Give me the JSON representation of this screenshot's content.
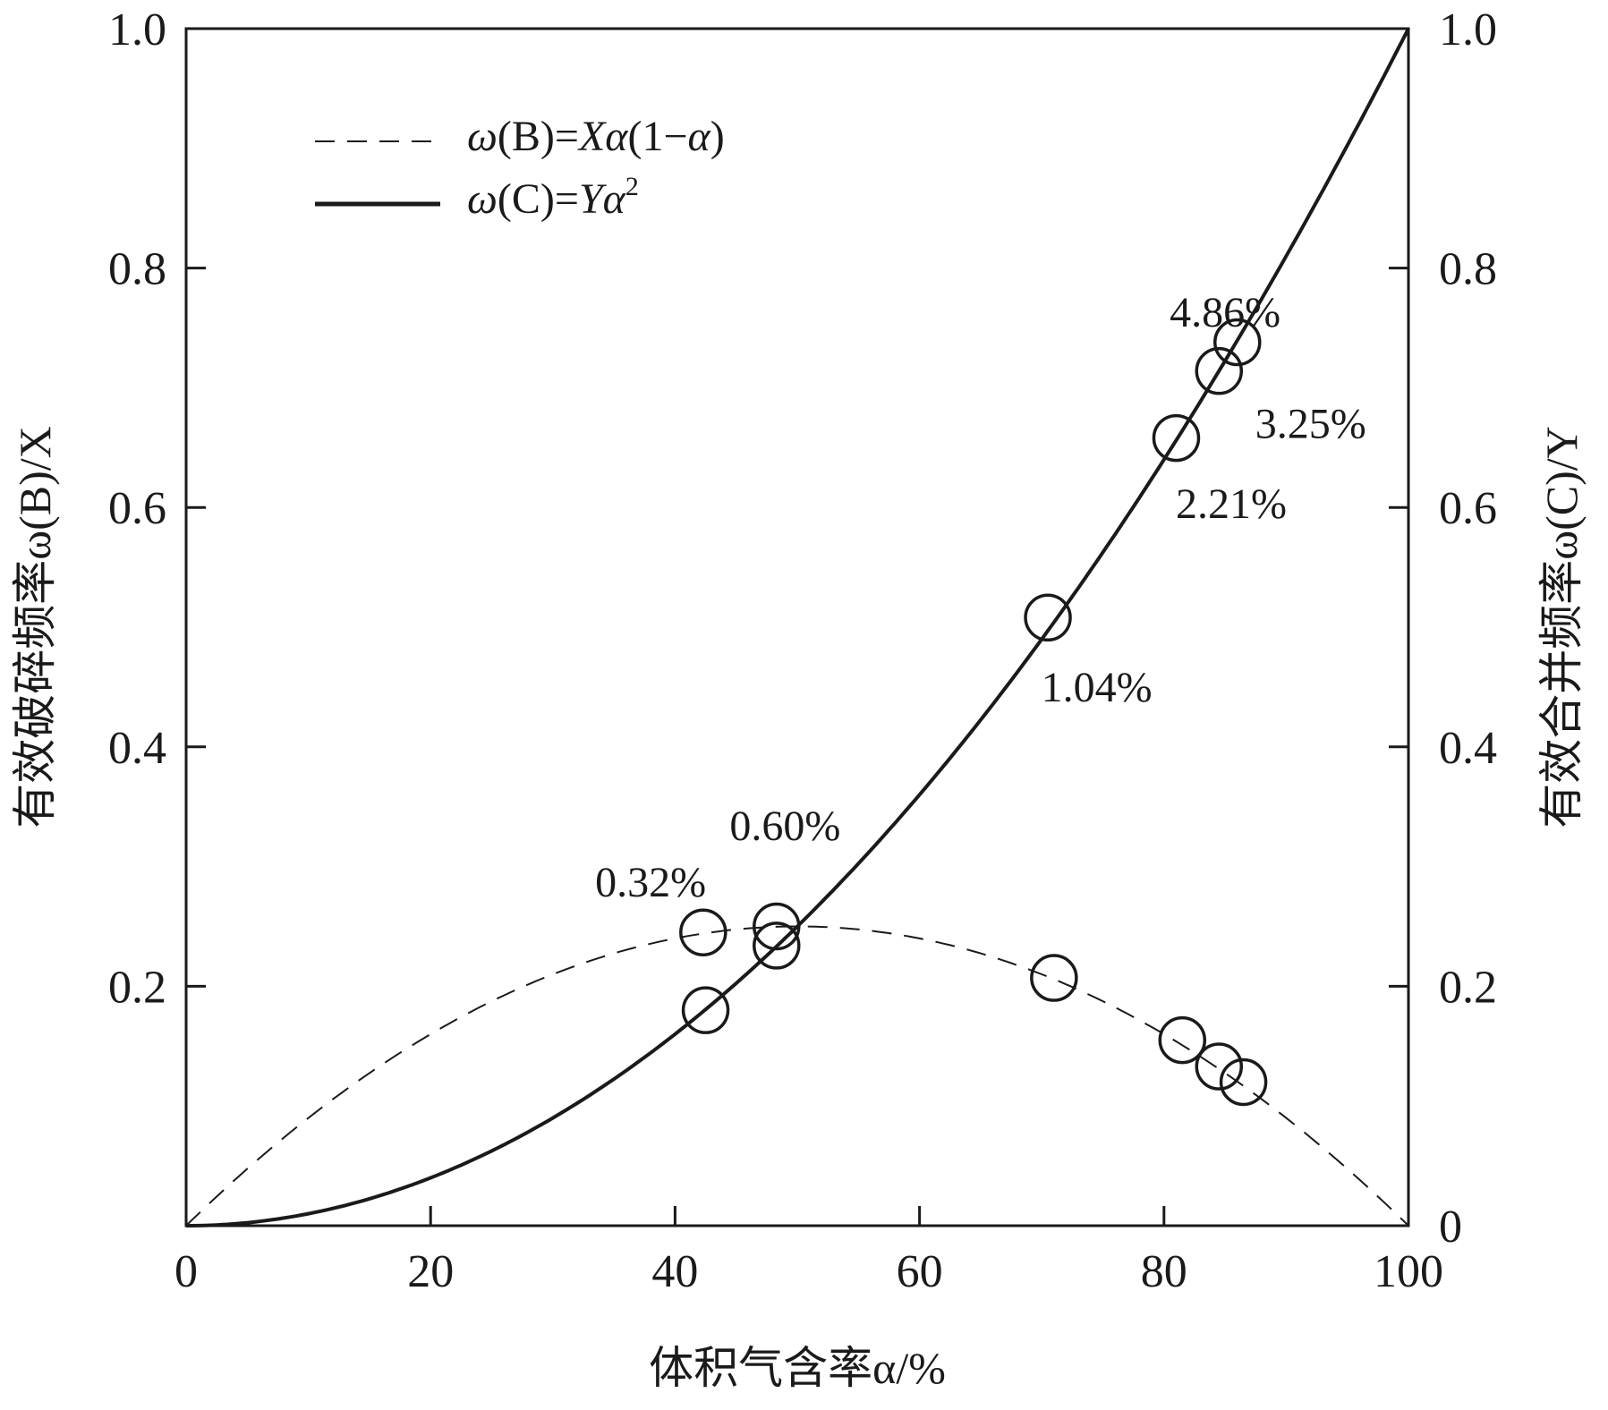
{
  "chart_data": {
    "type": "scatter",
    "xlabel": "体积气含率α/%",
    "ylabel_left": "有效破碎频率ω(B)/X",
    "ylabel_right": "有效合并频率ω(C)/Y",
    "xlim": [
      0,
      100
    ],
    "ylim_left": [
      0,
      1.0
    ],
    "ylim_right": [
      0,
      1.0
    ],
    "grid": false,
    "legend_position": "top-left",
    "x_ticks": [
      "0",
      "20",
      "40",
      "60",
      "80",
      "100"
    ],
    "y_ticks_left": [
      "0.2",
      "0.4",
      "0.6",
      "0.8",
      "1.0"
    ],
    "y_ticks_right": [
      "0",
      "0.2",
      "0.4",
      "0.6",
      "0.8",
      "1.0"
    ],
    "series": [
      {
        "name": "ω(B)=Xα(1−α)",
        "style": "dashed",
        "formula": "alpha*(1-alpha)",
        "points": [
          {
            "x": 42.3,
            "y": 0.245
          },
          {
            "x": 48.3,
            "y": 0.25
          },
          {
            "x": 71.0,
            "y": 0.207
          },
          {
            "x": 81.5,
            "y": 0.155
          },
          {
            "x": 84.5,
            "y": 0.133
          },
          {
            "x": 86.5,
            "y": 0.12
          }
        ]
      },
      {
        "name": "ω(C)=Yα²",
        "style": "solid",
        "formula": "alpha^2",
        "points": [
          {
            "x": 42.5,
            "y": 0.18
          },
          {
            "x": 48.3,
            "y": 0.234
          },
          {
            "x": 70.5,
            "y": 0.508
          },
          {
            "x": 81.0,
            "y": 0.658
          },
          {
            "x": 84.5,
            "y": 0.714
          },
          {
            "x": 86.0,
            "y": 0.738
          }
        ]
      }
    ],
    "annotations": [
      {
        "text": "0.32%",
        "x": 38.0,
        "y": 0.287
      },
      {
        "text": "0.60%",
        "x": 49.0,
        "y": 0.334
      },
      {
        "text": "1.04%",
        "x": 74.5,
        "y": 0.45
      },
      {
        "text": "2.21%",
        "x": 85.5,
        "y": 0.603
      },
      {
        "text": "3.25%",
        "x": 92.0,
        "y": 0.67
      },
      {
        "text": "4.86%",
        "x": 85.0,
        "y": 0.763
      }
    ]
  },
  "legend": {
    "b_omega": "ω",
    "b_paren": "(B)=",
    "b_x": "X",
    "b_alpha": "α",
    "b_rest": "(1−",
    "b_alpha2": "α",
    "b_close": ")",
    "c_omega": "ω",
    "c_paren": "(C)=",
    "c_y": "Y",
    "c_alpha": "α",
    "c_sup": "2"
  },
  "style": {
    "line_color": "#1a1a1a",
    "marker_color": "#1a1a1a"
  }
}
